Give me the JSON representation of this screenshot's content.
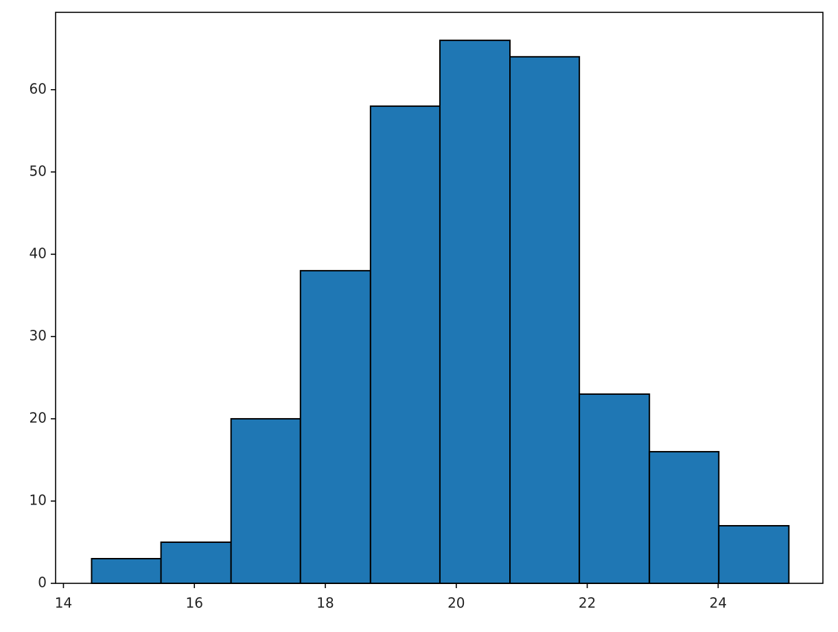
{
  "chart_data": {
    "type": "histogram",
    "bins": [
      14.43,
      15.49,
      16.56,
      17.62,
      18.69,
      19.75,
      20.82,
      21.88,
      22.95,
      24.01,
      25.08
    ],
    "values": [
      3,
      5,
      20,
      38,
      58,
      66,
      64,
      23,
      16,
      7
    ],
    "color": "#1f77b4",
    "edgecolor": "#000000",
    "xlim": [
      13.88,
      25.6
    ],
    "xticks": [
      14,
      16,
      18,
      20,
      22,
      24
    ],
    "ylim": [
      0,
      69.4
    ],
    "yticks": [
      0,
      10,
      20,
      30,
      40,
      50,
      60
    ],
    "grid": false
  }
}
